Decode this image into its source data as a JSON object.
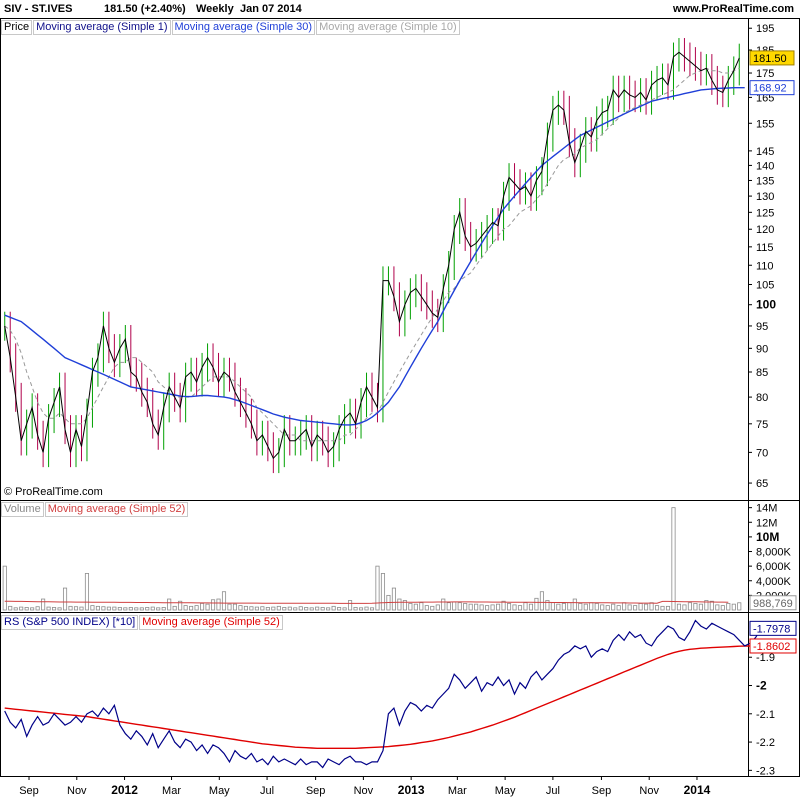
{
  "header": {
    "symbol": "SIV - ST.IVES",
    "price_change": "181.50 (+2.40%)",
    "period": "Weekly",
    "date": "Jan 07 2014",
    "site": "www.ProRealTime.com"
  },
  "watermark": "© ProRealTime.com",
  "legends": {
    "price": [
      "Price",
      "Moving average (Simple 1)",
      "Moving average (Simple 30)",
      "Moving average (Simple 10)"
    ],
    "volume": [
      "Volume",
      "Moving average (Simple 52)"
    ],
    "rs": [
      "RS (S&P 500 INDEX) [*10]",
      "Moving average (Simple 52)"
    ]
  },
  "colors": {
    "up": "#00a000",
    "down": "#b0004a",
    "ma1": "#000000",
    "ma30": "#1f3fd8",
    "ma10": "#999999",
    "rs": "#000088",
    "rs_ma": "#e00000",
    "vol_bar": "#8c8c8c",
    "vol_ma": "#d04040",
    "axis_grid": "#e8e8e8"
  },
  "x_axis": {
    "labels": [
      "Sep",
      "Nov",
      "2012",
      "Mar",
      "May",
      "Jul",
      "Sep",
      "Nov",
      "2013",
      "Mar",
      "May",
      "Jul",
      "Sep",
      "Nov",
      "2014"
    ],
    "bold": [
      false,
      false,
      true,
      false,
      false,
      false,
      false,
      false,
      true,
      false,
      false,
      false,
      false,
      false,
      true
    ]
  },
  "price_axis": {
    "ticks": [
      65,
      70,
      75,
      80,
      85,
      90,
      95,
      100,
      105,
      110,
      115,
      120,
      125,
      130,
      135,
      140,
      145,
      155,
      165,
      175,
      185,
      195
    ],
    "bold": [
      100
    ],
    "scale": "log",
    "range": [
      63,
      197
    ],
    "badges": [
      {
        "text": "181.50",
        "value": 181.5,
        "bg": "#ffd800",
        "fg": "#000000"
      },
      {
        "text": "168.92",
        "value": 168.92,
        "bg": "#ffffff",
        "fg": "#1f3fd8"
      }
    ]
  },
  "volume_axis": {
    "ticks": [
      "14M",
      "12M",
      "10M",
      "8,000K",
      "6,000K",
      "4,000K",
      "2,000K"
    ],
    "tick_values": [
      14000000,
      12000000,
      10000000,
      8000000,
      6000000,
      4000000,
      2000000
    ],
    "bold": [
      "10M"
    ],
    "range": [
      0,
      14500000
    ],
    "badge": {
      "text": "988,769",
      "value": 988769
    }
  },
  "rs_axis": {
    "ticks": [
      "-1.9",
      "-2",
      "-2.1",
      "-2.2",
      "-2.3"
    ],
    "tick_values": [
      -1.9,
      -2.0,
      -2.1,
      -2.2,
      -2.3
    ],
    "bold": [
      "-2"
    ],
    "range": [
      -2.32,
      -1.74
    ],
    "badges": [
      {
        "text": "-1.7978",
        "value": -1.7978,
        "fg": "#000088"
      },
      {
        "text": "-1.8602",
        "value": -1.8602,
        "fg": "#e00000"
      }
    ]
  },
  "chart_data": [
    {
      "type": "candlestick",
      "title": "SIV - ST.IVES",
      "period": "Weekly",
      "x_start": "2011-08-01",
      "yscale": "log",
      "ylim": [
        63,
        197
      ],
      "close": [
        95,
        88,
        80,
        72,
        75,
        78,
        73,
        70,
        76,
        79,
        82,
        74,
        70,
        74,
        71,
        77,
        85,
        88,
        95,
        90,
        87,
        90,
        92,
        85,
        84,
        81,
        79,
        75,
        73,
        78,
        82,
        80,
        78,
        84,
        85,
        83,
        86,
        88,
        86,
        83,
        85,
        84,
        81,
        79,
        77,
        75,
        72,
        73,
        71,
        69,
        70,
        74,
        72,
        72,
        73,
        74,
        71,
        73,
        72,
        70,
        71,
        74,
        76,
        77,
        75,
        79,
        82,
        80,
        78,
        106,
        106,
        102,
        96,
        100,
        103,
        104,
        102,
        100,
        98,
        97,
        104,
        110,
        120,
        125,
        118,
        115,
        116,
        118,
        120,
        122,
        121,
        130,
        136,
        134,
        132,
        133,
        130,
        135,
        138,
        150,
        160,
        162,
        160,
        148,
        141,
        146,
        152,
        150,
        156,
        159,
        160,
        168,
        165,
        168,
        166,
        165,
        167,
        164,
        170,
        172,
        173,
        170,
        182,
        184,
        182,
        180,
        178,
        176,
        177,
        172,
        168,
        167,
        172,
        176,
        181.5
      ],
      "ma10": [
        95,
        94,
        92,
        89,
        85,
        82,
        79,
        77,
        76,
        76,
        77,
        76,
        75,
        75,
        75,
        76,
        78,
        80,
        82,
        84,
        86,
        87,
        87,
        88,
        88,
        87,
        86,
        85,
        83,
        82,
        81,
        80,
        80,
        80,
        80,
        81,
        82,
        83,
        84,
        84,
        84,
        84,
        83,
        82,
        81,
        80,
        78,
        77,
        76,
        75,
        74,
        73,
        73,
        73,
        72,
        72,
        72,
        72,
        72,
        72,
        72,
        72,
        73,
        73,
        74,
        75,
        76,
        77,
        77,
        79,
        81,
        83,
        85,
        87,
        89,
        91,
        93,
        95,
        97,
        99,
        101,
        103,
        104,
        106,
        107,
        108,
        110,
        112,
        114,
        116,
        118,
        120,
        121,
        123,
        125,
        126,
        127,
        129,
        131,
        134,
        137,
        140,
        142,
        143,
        144,
        146,
        147,
        148,
        149,
        151,
        153,
        155,
        157,
        159,
        160,
        161,
        162,
        163,
        164,
        165,
        166,
        167,
        168,
        170,
        172,
        174,
        175,
        176,
        177,
        176,
        176,
        175,
        175,
        176,
        177
      ],
      "ma30": [
        97.5,
        97,
        96.5,
        96,
        95,
        94,
        93,
        92,
        91,
        90,
        89,
        88,
        87.5,
        87,
        86.5,
        86,
        85.5,
        85,
        84.5,
        84,
        83.5,
        83,
        82.5,
        82,
        81.8,
        81.6,
        81.4,
        81.2,
        81,
        80.8,
        80.6,
        80.4,
        80.2,
        80.1,
        80.1,
        80.2,
        80.3,
        80.3,
        80.2,
        80.1,
        80,
        79.8,
        79.5,
        79.2,
        78.8,
        78.4,
        78,
        77.6,
        77.2,
        76.8,
        76.5,
        76.2,
        76,
        75.8,
        75.6,
        75.5,
        75.4,
        75.3,
        75.2,
        75.1,
        75,
        74.9,
        74.8,
        74.8,
        74.9,
        75.2,
        75.6,
        76.2,
        77,
        78,
        79,
        80.5,
        82,
        84,
        86,
        88,
        90,
        92,
        94,
        96,
        98.5,
        101,
        103.5,
        106,
        108.5,
        111,
        113.5,
        116,
        118.5,
        121,
        123.5,
        126,
        128,
        130,
        132,
        134,
        136,
        138,
        140,
        141.5,
        143,
        144.5,
        146,
        147.5,
        149,
        150.5,
        151.5,
        152.5,
        153.5,
        154.5,
        155.5,
        156.5,
        157.5,
        158.5,
        159.5,
        160.5,
        161.5,
        162.5,
        163.5,
        164,
        164.5,
        165,
        165.5,
        166,
        166.5,
        167,
        167.5,
        168,
        168.2,
        168.4,
        168.6,
        168.7,
        168.8,
        168.9,
        168.92,
        168.92
      ]
    },
    {
      "type": "bar",
      "title": "Volume",
      "ylim": [
        0,
        14500000
      ],
      "values": [
        6000000,
        500000,
        300000,
        400000,
        350000,
        300000,
        450000,
        1500000,
        400000,
        350000,
        300000,
        3000000,
        500000,
        450000,
        400000,
        5000000,
        600000,
        500000,
        450000,
        400000,
        400000,
        350000,
        300000,
        350000,
        300000,
        300000,
        350000,
        400000,
        300000,
        350000,
        1500000,
        500000,
        1200000,
        600000,
        500000,
        600000,
        900000,
        800000,
        1400000,
        1500000,
        2500000,
        800000,
        800000,
        600000,
        500000,
        450000,
        400000,
        450000,
        350000,
        400000,
        500000,
        350000,
        400000,
        300000,
        450000,
        350000,
        300000,
        400000,
        350000,
        300000,
        500000,
        350000,
        300000,
        1300000,
        350000,
        300000,
        400000,
        300000,
        6000000,
        5000000,
        2000000,
        3000000,
        1500000,
        1300000,
        900000,
        800000,
        1000000,
        600000,
        500000,
        700000,
        1500000,
        1000000,
        1100000,
        1000000,
        900000,
        800000,
        800000,
        700000,
        600000,
        700000,
        800000,
        1200000,
        900000,
        700000,
        600000,
        1000000,
        800000,
        1600000,
        2500000,
        1300000,
        1000000,
        800000,
        900000,
        1000000,
        1500000,
        900000,
        800000,
        1000000,
        900000,
        700000,
        600000,
        800000,
        600000,
        1000000,
        700000,
        600000,
        900000,
        800000,
        1000000,
        600000,
        500000,
        500000,
        14000000,
        800000,
        700000,
        1000000,
        900000,
        800000,
        1300000,
        1200000,
        700000,
        600000,
        900000,
        800000,
        988769
      ],
      "ma": [
        1200000,
        1190000,
        1180000,
        1170000,
        1160000,
        1150000,
        1140000,
        1130000,
        1120000,
        1110000,
        1100000,
        1095000,
        1090000,
        1085000,
        1080000,
        1075000,
        1070000,
        1065000,
        1060000,
        1055000,
        1050000,
        1045000,
        1040000,
        1035000,
        1030000,
        1025000,
        1020000,
        1015000,
        1010000,
        1005000,
        1000000,
        995000,
        990000,
        985000,
        980000,
        975000,
        970000,
        965000,
        960000,
        955000,
        950000,
        948000,
        946000,
        944000,
        942000,
        940000,
        938000,
        936000,
        934000,
        932000,
        930000,
        928000,
        926000,
        924000,
        922000,
        920000,
        918000,
        916000,
        914000,
        912000,
        910000,
        908000,
        906000,
        904000,
        902000,
        900000,
        905000,
        910000,
        960000,
        1000000,
        1020000,
        1040000,
        1050000,
        1060000,
        1065000,
        1070000,
        1075000,
        1080000,
        1085000,
        1090000,
        1095000,
        1100000,
        1105000,
        1110000,
        1110000,
        1105000,
        1100000,
        1095000,
        1090000,
        1085000,
        1080000,
        1075000,
        1070000,
        1065000,
        1060000,
        1055000,
        1050000,
        1045000,
        1040000,
        1035000,
        1030000,
        1025000,
        1020000,
        1015000,
        1010000,
        1005000,
        1000000,
        995000,
        990000,
        985000,
        980000,
        975000,
        970000,
        965000,
        960000,
        955000,
        950000,
        945000,
        940000,
        935000,
        1180000,
        1170000,
        1160000,
        1150000,
        1140000,
        1130000,
        1120000,
        1110000,
        1100000,
        1090000,
        1080000,
        1075000,
        1070000
      ]
    },
    {
      "type": "line",
      "title": "RS (S&P 500 INDEX) [*10]",
      "ylim": [
        -2.32,
        -1.74
      ],
      "series": [
        {
          "name": "RS (S&P 500 INDEX) [*10]",
          "values": [
            -2.09,
            -2.13,
            -2.15,
            -2.12,
            -2.18,
            -2.14,
            -2.11,
            -2.14,
            -2.13,
            -2.1,
            -2.12,
            -2.14,
            -2.13,
            -2.11,
            -2.13,
            -2.1,
            -2.09,
            -2.11,
            -2.08,
            -2.1,
            -2.07,
            -2.14,
            -2.17,
            -2.19,
            -2.16,
            -2.18,
            -2.21,
            -2.17,
            -2.22,
            -2.19,
            -2.16,
            -2.2,
            -2.22,
            -2.19,
            -2.2,
            -2.23,
            -2.21,
            -2.24,
            -2.21,
            -2.22,
            -2.24,
            -2.27,
            -2.23,
            -2.25,
            -2.26,
            -2.24,
            -2.27,
            -2.26,
            -2.28,
            -2.25,
            -2.27,
            -2.26,
            -2.27,
            -2.28,
            -2.26,
            -2.28,
            -2.27,
            -2.27,
            -2.29,
            -2.26,
            -2.27,
            -2.28,
            -2.26,
            -2.25,
            -2.27,
            -2.27,
            -2.28,
            -2.27,
            -2.27,
            -2.23,
            -2.1,
            -2.08,
            -2.14,
            -2.09,
            -2.06,
            -2.07,
            -2.09,
            -2.07,
            -2.08,
            -2.05,
            -2.03,
            -2.01,
            -1.96,
            -1.98,
            -2.01,
            -1.99,
            -1.97,
            -2.02,
            -1.99,
            -2.0,
            -1.97,
            -2.0,
            -1.98,
            -2.03,
            -1.99,
            -2.01,
            -1.97,
            -1.95,
            -1.98,
            -1.96,
            -1.94,
            -1.91,
            -1.89,
            -1.88,
            -1.86,
            -1.87,
            -1.86,
            -1.9,
            -1.88,
            -1.87,
            -1.88,
            -1.84,
            -1.82,
            -1.84,
            -1.81,
            -1.83,
            -1.82,
            -1.85,
            -1.86,
            -1.83,
            -1.81,
            -1.79,
            -1.8,
            -1.83,
            -1.84,
            -1.81,
            -1.77,
            -1.79,
            -1.8,
            -1.78,
            -1.79,
            -1.8,
            -1.81,
            -1.82,
            -1.84,
            -1.86,
            -1.85,
            -1.83,
            -1.7978
          ]
        },
        {
          "name": "Moving average (Simple 52)",
          "values": [
            -2.08,
            -2.082,
            -2.084,
            -2.086,
            -2.088,
            -2.09,
            -2.092,
            -2.094,
            -2.096,
            -2.098,
            -2.1,
            -2.102,
            -2.104,
            -2.106,
            -2.108,
            -2.11,
            -2.113,
            -2.116,
            -2.119,
            -2.122,
            -2.125,
            -2.128,
            -2.131,
            -2.134,
            -2.137,
            -2.14,
            -2.143,
            -2.146,
            -2.149,
            -2.152,
            -2.155,
            -2.158,
            -2.161,
            -2.164,
            -2.167,
            -2.17,
            -2.173,
            -2.176,
            -2.179,
            -2.182,
            -2.185,
            -2.188,
            -2.191,
            -2.194,
            -2.197,
            -2.2,
            -2.203,
            -2.206,
            -2.208,
            -2.21,
            -2.212,
            -2.214,
            -2.216,
            -2.218,
            -2.219,
            -2.22,
            -2.221,
            -2.222,
            -2.222,
            -2.222,
            -2.222,
            -2.222,
            -2.222,
            -2.222,
            -2.222,
            -2.221,
            -2.22,
            -2.219,
            -2.218,
            -2.217,
            -2.216,
            -2.214,
            -2.212,
            -2.21,
            -2.208,
            -2.205,
            -2.202,
            -2.199,
            -2.196,
            -2.192,
            -2.188,
            -2.184,
            -2.179,
            -2.174,
            -2.169,
            -2.164,
            -2.158,
            -2.152,
            -2.146,
            -2.14,
            -2.133,
            -2.126,
            -2.119,
            -2.112,
            -2.104,
            -2.096,
            -2.088,
            -2.08,
            -2.072,
            -2.064,
            -2.056,
            -2.048,
            -2.04,
            -2.032,
            -2.024,
            -2.016,
            -2.008,
            -2.0,
            -1.992,
            -1.984,
            -1.976,
            -1.968,
            -1.96,
            -1.952,
            -1.944,
            -1.936,
            -1.928,
            -1.92,
            -1.912,
            -1.904,
            -1.897,
            -1.89,
            -1.884,
            -1.879,
            -1.875,
            -1.872,
            -1.87,
            -1.868,
            -1.867,
            -1.866,
            -1.865,
            -1.864,
            -1.863,
            -1.862,
            -1.861,
            -1.8605,
            -1.8603,
            -1.8602
          ]
        }
      ]
    }
  ]
}
